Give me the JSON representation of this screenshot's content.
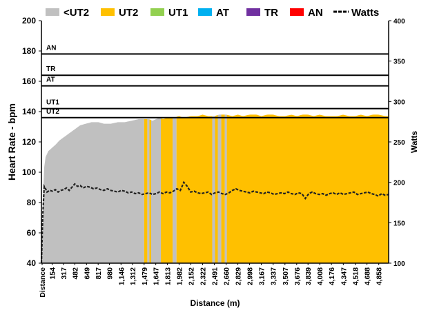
{
  "chart_data": {
    "type": "area",
    "xlabel": "Distance (m)",
    "ylabel": "Heart Rate - bpm",
    "y2label": "Watts",
    "ylim": [
      40,
      200
    ],
    "y_ticks": [
      "40",
      "60",
      "80",
      "100",
      "120",
      "140",
      "160",
      "180",
      "200"
    ],
    "y2lim": [
      100,
      400
    ],
    "y2_ticks": [
      "100",
      "150",
      "200",
      "250",
      "300",
      "350",
      "400"
    ],
    "xlim": [
      0,
      5000
    ],
    "x_first_label": "Distance",
    "x_ticks": [
      "154",
      "317",
      "482",
      "649",
      "817",
      "980",
      "1,146",
      "1,312",
      "1,479",
      "1,647",
      "1,813",
      "1,982",
      "2,152",
      "2,322",
      "2,491",
      "2,660",
      "2,829",
      "2,998",
      "3,167",
      "3,337",
      "3,507",
      "3,676",
      "3,839",
      "4,008",
      "4,176",
      "4,347",
      "4,518",
      "4,688",
      "4,858"
    ],
    "x_tick_values": [
      154,
      317,
      482,
      649,
      817,
      980,
      1146,
      1312,
      1479,
      1647,
      1813,
      1982,
      2152,
      2322,
      2491,
      2660,
      2829,
      2998,
      3167,
      3337,
      3507,
      3676,
      3839,
      4008,
      4176,
      4347,
      4518,
      4688,
      4858
    ],
    "legend": [
      {
        "name": "<UT2",
        "color": "#c0c0c0"
      },
      {
        "name": "UT2",
        "color": "#ffc000"
      },
      {
        "name": "UT1",
        "color": "#92d050"
      },
      {
        "name": "AT",
        "color": "#00b0f0"
      },
      {
        "name": "TR",
        "color": "#7030a0"
      },
      {
        "name": "AN",
        "color": "#ff0000"
      },
      {
        "name": "Watts",
        "color": "#000000",
        "style": "dashed"
      }
    ],
    "zones": [
      {
        "name": "UT2",
        "bpm": 136
      },
      {
        "name": "UT1",
        "bpm": 142
      },
      {
        "name": "AT",
        "bpm": 157
      },
      {
        "name": "TR",
        "bpm": 164
      },
      {
        "name": "AN",
        "bpm": 178
      }
    ],
    "heart_rate": {
      "x": [
        0,
        30,
        60,
        100,
        150,
        200,
        260,
        320,
        380,
        440,
        500,
        560,
        640,
        720,
        820,
        900,
        1000,
        1100,
        1200,
        1300,
        1400,
        1479,
        1550,
        1600,
        1650,
        1700,
        1750,
        1813,
        1900,
        1982,
        2050,
        2152,
        2250,
        2322,
        2400,
        2491,
        2560,
        2660,
        2750,
        2829,
        2900,
        2998,
        3100,
        3167,
        3250,
        3337,
        3420,
        3507,
        3600,
        3676,
        3760,
        3839,
        3920,
        4008,
        4090,
        4176,
        4260,
        4347,
        4430,
        4518,
        4600,
        4688,
        4770,
        4858,
        4950,
        5000
      ],
      "values": [
        40,
        100,
        110,
        114,
        116,
        118,
        121,
        123,
        125,
        127,
        129,
        131,
        132,
        133,
        133,
        132,
        132,
        133,
        133,
        134,
        135,
        135,
        135,
        134,
        135,
        136,
        135,
        136,
        136,
        137,
        136,
        137,
        137,
        138,
        137,
        137,
        138,
        138,
        137,
        138,
        137,
        138,
        138,
        137,
        138,
        138,
        137,
        137,
        138,
        137,
        138,
        138,
        137,
        138,
        137,
        137,
        137,
        138,
        137,
        137,
        138,
        137,
        138,
        138,
        137,
        137
      ]
    },
    "zone_segments": [
      {
        "zone": "<UT2",
        "from": 0,
        "to": 1479
      },
      {
        "zone": "UT2",
        "from": 1479,
        "to": 1525
      },
      {
        "zone": "<UT2",
        "from": 1525,
        "to": 1555
      },
      {
        "zone": "UT2",
        "from": 1555,
        "to": 1580
      },
      {
        "zone": "<UT2",
        "from": 1580,
        "to": 1720
      },
      {
        "zone": "UT2",
        "from": 1720,
        "to": 1890
      },
      {
        "zone": "<UT2",
        "from": 1890,
        "to": 1945
      },
      {
        "zone": "UT2",
        "from": 1945,
        "to": 2460
      },
      {
        "zone": "<UT2",
        "from": 2460,
        "to": 2500
      },
      {
        "zone": "UT2",
        "from": 2500,
        "to": 2540
      },
      {
        "zone": "<UT2",
        "from": 2540,
        "to": 2590
      },
      {
        "zone": "UT2",
        "from": 2590,
        "to": 2640
      },
      {
        "zone": "<UT2",
        "from": 2640,
        "to": 2670
      },
      {
        "zone": "UT2",
        "from": 2670,
        "to": 5000
      }
    ],
    "watts": {
      "x": [
        0,
        20,
        40,
        60,
        80,
        120,
        160,
        200,
        240,
        280,
        320,
        360,
        400,
        440,
        480,
        520,
        560,
        600,
        650,
        700,
        750,
        800,
        850,
        900,
        950,
        1000,
        1050,
        1100,
        1150,
        1200,
        1250,
        1300,
        1350,
        1400,
        1450,
        1500,
        1550,
        1600,
        1650,
        1700,
        1750,
        1800,
        1850,
        1900,
        1950,
        2000,
        2050,
        2100,
        2150,
        2200,
        2250,
        2300,
        2350,
        2400,
        2450,
        2500,
        2550,
        2600,
        2650,
        2700,
        2750,
        2800,
        2850,
        2900,
        2950,
        3000,
        3050,
        3100,
        3150,
        3200,
        3250,
        3300,
        3350,
        3400,
        3450,
        3500,
        3550,
        3600,
        3650,
        3700,
        3750,
        3800,
        3850,
        3900,
        3950,
        4000,
        4050,
        4100,
        4150,
        4200,
        4250,
        4300,
        4350,
        4400,
        4450,
        4500,
        4550,
        4600,
        4650,
        4700,
        4750,
        4800,
        4850,
        4900,
        4950,
        5000
      ],
      "values": [
        100,
        160,
        195,
        192,
        188,
        190,
        189,
        191,
        188,
        190,
        191,
        193,
        190,
        194,
        198,
        195,
        196,
        193,
        195,
        194,
        192,
        193,
        191,
        190,
        192,
        190,
        189,
        188,
        190,
        189,
        187,
        188,
        186,
        187,
        185,
        186,
        187,
        185,
        186,
        188,
        186,
        188,
        187,
        189,
        192,
        190,
        200,
        195,
        188,
        189,
        187,
        186,
        187,
        188,
        185,
        187,
        188,
        186,
        185,
        187,
        190,
        192,
        190,
        189,
        188,
        187,
        189,
        188,
        187,
        186,
        188,
        187,
        185,
        186,
        187,
        186,
        188,
        186,
        185,
        187,
        186,
        180,
        186,
        188,
        186,
        185,
        186,
        184,
        186,
        187,
        185,
        187,
        185,
        186,
        187,
        188,
        185,
        186,
        187,
        188,
        186,
        185,
        183,
        186,
        184,
        185
      ]
    }
  }
}
